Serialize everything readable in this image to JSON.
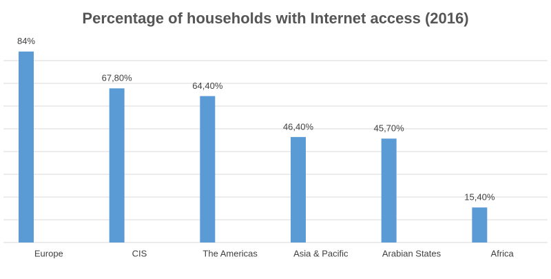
{
  "chart_data": {
    "type": "bar",
    "title": "Percentage of households with Internet access (2016)",
    "categories": [
      "Europe",
      "CIS",
      "The Americas",
      "Asia & Pacific",
      "Arabian States",
      "Africa"
    ],
    "values": [
      84,
      67.8,
      64.4,
      46.4,
      45.7,
      15.4
    ],
    "value_labels": [
      "84%",
      "67,80%",
      "64,40%",
      "46,40%",
      "45,70%",
      "15,40%"
    ],
    "color": "#5b9bd5",
    "ylim": [
      0,
      90
    ],
    "yticks": [
      0,
      10,
      20,
      30,
      40,
      50,
      60,
      70,
      80
    ],
    "grid": true
  }
}
